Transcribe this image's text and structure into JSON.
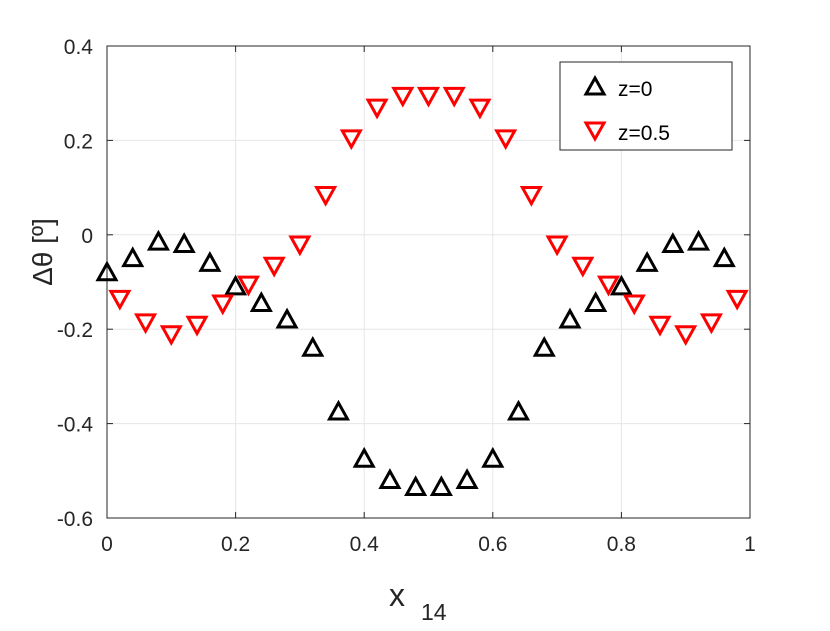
{
  "chart_data": {
    "type": "scatter",
    "title": "",
    "xlabel": "x",
    "xlabel_subscript": "14",
    "ylabel": "Δθ [º]",
    "xlim": [
      0,
      1
    ],
    "ylim": [
      -0.6,
      0.4
    ],
    "x_ticks": [
      0,
      0.2,
      0.4,
      0.6,
      0.8,
      1
    ],
    "x_tick_labels": [
      "0",
      "0.2",
      "0.4",
      "0.6",
      "0.8",
      "1"
    ],
    "y_ticks": [
      -0.6,
      -0.4,
      -0.2,
      0,
      0.2,
      0.4
    ],
    "y_tick_labels": [
      "-0.6",
      "-0.4",
      "-0.2",
      "0",
      "0.2",
      "0.4"
    ],
    "grid": true,
    "legend_position": "top-right",
    "series": [
      {
        "name": "z=0",
        "marker": "triangle-up",
        "color": "#000000",
        "x": [
          0.0,
          0.04,
          0.08,
          0.12,
          0.16,
          0.2,
          0.24,
          0.28,
          0.32,
          0.36,
          0.4,
          0.44,
          0.48,
          0.52,
          0.56,
          0.6,
          0.64,
          0.68,
          0.72,
          0.76,
          0.8,
          0.84,
          0.88,
          0.92,
          0.96
        ],
        "y": [
          -0.08,
          -0.05,
          -0.015,
          -0.02,
          -0.06,
          -0.11,
          -0.145,
          -0.18,
          -0.24,
          -0.375,
          -0.475,
          -0.52,
          -0.535,
          -0.535,
          -0.52,
          -0.475,
          -0.375,
          -0.24,
          -0.18,
          -0.145,
          -0.11,
          -0.06,
          -0.02,
          -0.015,
          -0.05
        ]
      },
      {
        "name": "z=0.5",
        "marker": "triangle-down",
        "color": "#ff0000",
        "x": [
          0.02,
          0.06,
          0.1,
          0.14,
          0.18,
          0.22,
          0.26,
          0.3,
          0.34,
          0.38,
          0.42,
          0.46,
          0.5,
          0.54,
          0.58,
          0.62,
          0.66,
          0.7,
          0.74,
          0.78,
          0.82,
          0.86,
          0.9,
          0.94,
          0.98
        ],
        "y": [
          -0.135,
          -0.185,
          -0.21,
          -0.19,
          -0.145,
          -0.105,
          -0.065,
          -0.02,
          0.085,
          0.205,
          0.27,
          0.295,
          0.295,
          0.295,
          0.27,
          0.205,
          0.085,
          -0.02,
          -0.065,
          -0.105,
          -0.145,
          -0.19,
          -0.21,
          -0.185,
          -0.135
        ]
      }
    ]
  }
}
